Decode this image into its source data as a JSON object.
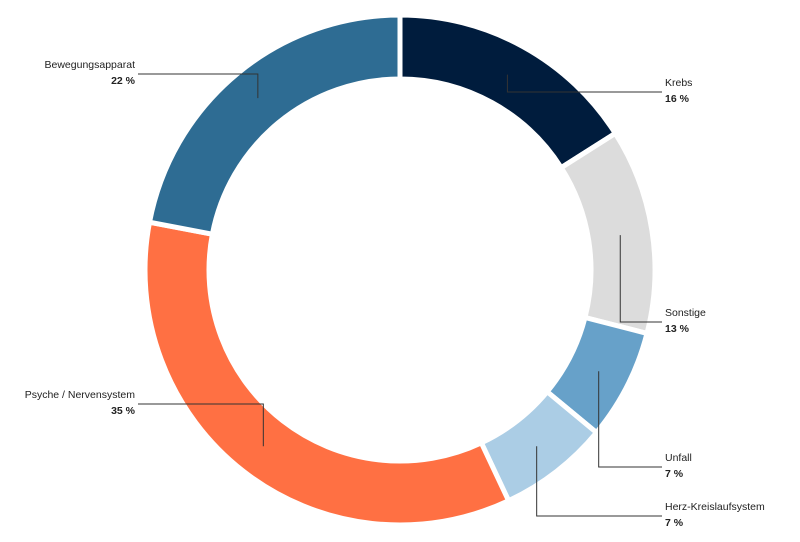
{
  "chart_data": {
    "type": "pie",
    "variant": "donut",
    "title": "",
    "legend": "none",
    "unit": "%",
    "slices": [
      {
        "label": "Krebs",
        "value": 16,
        "value_label": "16 %",
        "color": "#001c3d"
      },
      {
        "label": "Sonstige",
        "value": 13,
        "value_label": "13 %",
        "color": "#dcdcdc"
      },
      {
        "label": "Unfall",
        "value": 7,
        "value_label": "7 %",
        "color": "#67a1c9"
      },
      {
        "label": "Herz-Kreislaufsystem",
        "value": 7,
        "value_label": "7 %",
        "color": "#abcde5"
      },
      {
        "label": "Psyche / Nervensystem",
        "value": 35,
        "value_label": "35 %",
        "color": "#ff7043"
      },
      {
        "label": "Bewegungsapparat",
        "value": 22,
        "value_label": "22 %",
        "color": "#2e6c93"
      }
    ]
  }
}
